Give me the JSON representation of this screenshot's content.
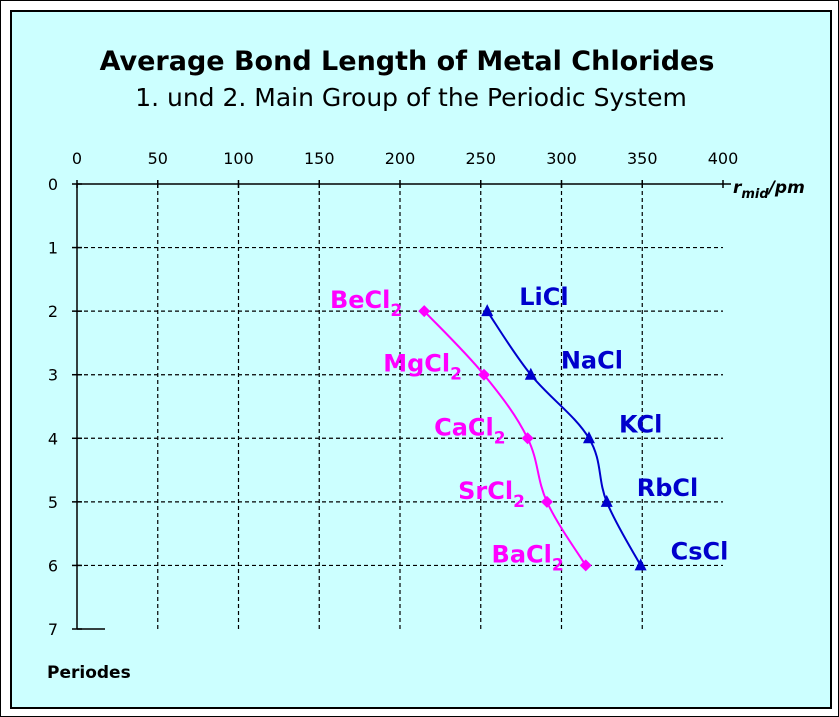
{
  "chart_data": {
    "type": "line",
    "title": "Average Bond Length of Metal Chlorides",
    "subtitle": "1. und 2. Main Group of the Periodic System",
    "x_axis": {
      "label_main": "r",
      "label_sub": "mid",
      "label_unit": "/pm",
      "position": "top",
      "range": [
        0,
        400
      ],
      "ticks": [
        0,
        50,
        100,
        150,
        200,
        250,
        300,
        350,
        400
      ]
    },
    "y_axis": {
      "label": "Periodes",
      "inverted": true,
      "range": [
        0,
        7
      ],
      "ticks": [
        0,
        1,
        2,
        3,
        4,
        5,
        6,
        7
      ]
    },
    "grid": true,
    "series": [
      {
        "id": "group2",
        "color": "#ff00ff",
        "marker": "diamond",
        "points": [
          {
            "x": 215,
            "y": 2,
            "label_main": "BeCl",
            "label_sub": "2"
          },
          {
            "x": 252,
            "y": 3,
            "label_main": "MgCl",
            "label_sub": "2"
          },
          {
            "x": 279,
            "y": 4,
            "label_main": "CaCl",
            "label_sub": "2"
          },
          {
            "x": 291,
            "y": 5,
            "label_main": "SrCl",
            "label_sub": "2"
          },
          {
            "x": 315,
            "y": 6,
            "label_main": "BaCl",
            "label_sub": "2"
          }
        ]
      },
      {
        "id": "group1",
        "color": "#0000cc",
        "marker": "triangle",
        "points": [
          {
            "x": 254,
            "y": 2,
            "label_main": "LiCl",
            "label_sub": ""
          },
          {
            "x": 281,
            "y": 3,
            "label_main": "NaCl",
            "label_sub": ""
          },
          {
            "x": 317,
            "y": 4,
            "label_main": "KCl",
            "label_sub": ""
          },
          {
            "x": 328,
            "y": 5,
            "label_main": "RbCl",
            "label_sub": ""
          },
          {
            "x": 349,
            "y": 6,
            "label_main": "CsCl",
            "label_sub": ""
          }
        ]
      }
    ]
  }
}
